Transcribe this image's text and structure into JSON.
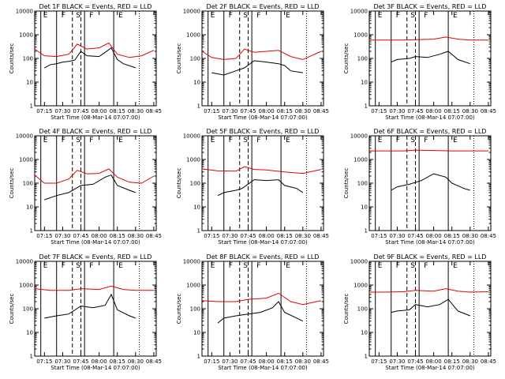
{
  "colors": {
    "events": "#000000",
    "lld": "#e00000",
    "frame": "#000000"
  },
  "common": {
    "xlabel": "Start Time (08-Mar-14 07:07:00)",
    "ylabel": "Counts/sec",
    "xticks": [
      "07:15",
      "07:30",
      "07:45",
      "08:00",
      "08:15",
      "08:30",
      "08:45"
    ],
    "yticks": [
      "1",
      "10",
      "100",
      "1000",
      "10000"
    ],
    "markers": [
      "E",
      "F",
      "S",
      "F",
      "E"
    ]
  },
  "chart_data": [
    {
      "type": "line",
      "title": "Det 1F BLACK = Events, RED = LLD",
      "xlabel": "Start Time (08-Mar-14 07:07:00)",
      "ylabel": "Counts/sec",
      "ylim": [
        1,
        10000
      ],
      "y_scale": "log",
      "series": [
        {
          "name": "Events",
          "color": "#000000",
          "x": [
            "07:15",
            "07:20",
            "07:25",
            "07:30",
            "07:35",
            "07:40",
            "07:45",
            "07:50",
            "08:00",
            "08:05",
            "08:10",
            "08:15",
            "08:20",
            "08:30"
          ],
          "values": [
            40,
            55,
            60,
            70,
            75,
            85,
            200,
            130,
            120,
            180,
            280,
            90,
            60,
            40
          ]
        },
        {
          "name": "LLD",
          "color": "#e00000",
          "x": [
            "07:07",
            "07:15",
            "07:25",
            "07:35",
            "07:42",
            "07:50",
            "08:00",
            "08:08",
            "08:15",
            "08:25",
            "08:35",
            "08:45"
          ],
          "values": [
            250,
            130,
            120,
            150,
            400,
            250,
            280,
            450,
            150,
            110,
            130,
            220
          ]
        }
      ]
    },
    {
      "type": "line",
      "title": "Det 2F BLACK = Events, RED = LLD",
      "xlabel": "Start Time (08-Mar-14 07:07:00)",
      "ylabel": "Counts/sec",
      "ylim": [
        1,
        10000
      ],
      "y_scale": "log",
      "series": [
        {
          "name": "Events",
          "color": "#000000",
          "x": [
            "07:15",
            "07:25",
            "07:35",
            "07:42",
            "07:50",
            "08:00",
            "08:10",
            "08:15",
            "08:20",
            "08:30"
          ],
          "values": [
            25,
            20,
            30,
            40,
            80,
            70,
            60,
            50,
            30,
            25
          ]
        },
        {
          "name": "LLD",
          "color": "#e00000",
          "x": [
            "07:07",
            "07:15",
            "07:25",
            "07:35",
            "07:42",
            "07:50",
            "08:00",
            "08:10",
            "08:20",
            "08:30",
            "08:45"
          ],
          "values": [
            200,
            110,
            90,
            100,
            250,
            180,
            200,
            220,
            120,
            90,
            200
          ]
        }
      ]
    },
    {
      "type": "line",
      "title": "Det 3F BLACK = Events, RED = LLD",
      "xlabel": "Start Time (08-Mar-14 07:07:00)",
      "ylabel": "Counts/sec",
      "ylim": [
        1,
        10000
      ],
      "y_scale": "log",
      "series": [
        {
          "name": "Events",
          "color": "#000000",
          "x": [
            "07:25",
            "07:30",
            "07:40",
            "07:45",
            "07:55",
            "08:05",
            "08:12",
            "08:20",
            "08:30"
          ],
          "values": [
            70,
            90,
            100,
            120,
            110,
            150,
            200,
            90,
            60
          ]
        },
        {
          "name": "LLD",
          "color": "#e00000",
          "x": [
            "07:07",
            "07:20",
            "07:35",
            "07:45",
            "08:00",
            "08:10",
            "08:20",
            "08:30",
            "08:45"
          ],
          "values": [
            600,
            600,
            600,
            620,
            650,
            800,
            650,
            600,
            600
          ]
        }
      ]
    },
    {
      "type": "line",
      "title": "Det 4F BLACK = Events, RED = LLD",
      "xlabel": "Start Time (08-Mar-14 07:07:00)",
      "ylabel": "Counts/sec",
      "ylim": [
        1,
        10000
      ],
      "y_scale": "log",
      "series": [
        {
          "name": "Events",
          "color": "#000000",
          "x": [
            "07:15",
            "07:25",
            "07:35",
            "07:45",
            "07:55",
            "08:05",
            "08:10",
            "08:15",
            "08:25",
            "08:30"
          ],
          "values": [
            20,
            30,
            40,
            80,
            90,
            180,
            220,
            80,
            50,
            40
          ]
        },
        {
          "name": "LLD",
          "color": "#e00000",
          "x": [
            "07:07",
            "07:15",
            "07:25",
            "07:35",
            "07:42",
            "07:50",
            "08:00",
            "08:08",
            "08:15",
            "08:25",
            "08:35",
            "08:45"
          ],
          "values": [
            220,
            100,
            100,
            150,
            350,
            250,
            260,
            400,
            180,
            110,
            100,
            200
          ]
        }
      ]
    },
    {
      "type": "line",
      "title": "Det 5F BLACK = Events, RED = LLD",
      "xlabel": "Start Time (08-Mar-14 07:07:00)",
      "ylabel": "Counts/sec",
      "ylim": [
        1,
        10000
      ],
      "y_scale": "log",
      "series": [
        {
          "name": "Events",
          "color": "#000000",
          "x": [
            "07:20",
            "07:25",
            "07:35",
            "07:40",
            "07:50",
            "08:00",
            "08:10",
            "08:15",
            "08:25",
            "08:30"
          ],
          "values": [
            30,
            40,
            50,
            60,
            140,
            130,
            140,
            80,
            60,
            40
          ]
        },
        {
          "name": "LLD",
          "color": "#e00000",
          "x": [
            "07:07",
            "07:20",
            "07:35",
            "07:42",
            "07:50",
            "08:00",
            "08:15",
            "08:30",
            "08:45"
          ],
          "values": [
            400,
            330,
            320,
            500,
            380,
            360,
            300,
            260,
            380
          ]
        }
      ]
    },
    {
      "type": "line",
      "title": "Det 6F BLACK = Events, RED = LLD",
      "xlabel": "Start Time (08-Mar-14 07:07:00)",
      "ylabel": "Counts/sec",
      "ylim": [
        1,
        10000
      ],
      "y_scale": "log",
      "series": [
        {
          "name": "Events",
          "color": "#000000",
          "x": [
            "07:25",
            "07:30",
            "07:40",
            "07:50",
            "08:00",
            "08:10",
            "08:15",
            "08:25",
            "08:30"
          ],
          "values": [
            50,
            70,
            90,
            130,
            250,
            180,
            100,
            60,
            50
          ]
        },
        {
          "name": "LLD",
          "color": "#e00000",
          "x": [
            "07:07",
            "07:20",
            "07:35",
            "07:45",
            "08:00",
            "08:15",
            "08:30",
            "08:45"
          ],
          "values": [
            2300,
            2300,
            2300,
            2500,
            2400,
            2300,
            2300,
            2300
          ]
        }
      ]
    },
    {
      "type": "line",
      "title": "Det 7F BLACK = Events, RED = LLD",
      "xlabel": "Start Time (08-Mar-14 07:07:00)",
      "ylabel": "Counts/sec",
      "ylim": [
        1,
        10000
      ],
      "y_scale": "log",
      "series": [
        {
          "name": "Events",
          "color": "#000000",
          "x": [
            "07:15",
            "07:25",
            "07:35",
            "07:45",
            "07:55",
            "08:05",
            "08:10",
            "08:15",
            "08:25",
            "08:30"
          ],
          "values": [
            40,
            50,
            60,
            130,
            110,
            140,
            400,
            90,
            50,
            40
          ]
        },
        {
          "name": "LLD",
          "color": "#e00000",
          "x": [
            "07:07",
            "07:20",
            "07:35",
            "07:45",
            "08:00",
            "08:10",
            "08:20",
            "08:30",
            "08:45"
          ],
          "values": [
            700,
            600,
            600,
            700,
            650,
            900,
            650,
            600,
            600
          ]
        }
      ]
    },
    {
      "type": "line",
      "title": "Det 8F BLACK = Events, RED = LLD",
      "xlabel": "Start Time (08-Mar-14 07:07:00)",
      "ylabel": "Counts/sec",
      "ylim": [
        1,
        10000
      ],
      "y_scale": "log",
      "series": [
        {
          "name": "Events",
          "color": "#000000",
          "x": [
            "07:20",
            "07:25",
            "07:35",
            "07:45",
            "07:55",
            "08:05",
            "08:10",
            "08:15",
            "08:25",
            "08:30"
          ],
          "values": [
            25,
            40,
            50,
            60,
            70,
            110,
            200,
            70,
            40,
            30
          ]
        },
        {
          "name": "LLD",
          "color": "#e00000",
          "x": [
            "07:07",
            "07:20",
            "07:35",
            "07:45",
            "08:00",
            "08:10",
            "08:20",
            "08:30",
            "08:45"
          ],
          "values": [
            220,
            200,
            200,
            250,
            280,
            450,
            200,
            150,
            220
          ]
        }
      ]
    },
    {
      "type": "line",
      "title": "Det 9F BLACK = Events, RED = LLD",
      "xlabel": "Start Time (08-Mar-14 07:07:00)",
      "ylabel": "Counts/sec",
      "ylim": [
        1,
        10000
      ],
      "y_scale": "log",
      "series": [
        {
          "name": "Events",
          "color": "#000000",
          "x": [
            "07:25",
            "07:30",
            "07:40",
            "07:45",
            "07:55",
            "08:05",
            "08:12",
            "08:20",
            "08:30"
          ],
          "values": [
            70,
            80,
            90,
            150,
            120,
            150,
            250,
            80,
            50
          ]
        },
        {
          "name": "LLD",
          "color": "#e00000",
          "x": [
            "07:07",
            "07:20",
            "07:35",
            "07:45",
            "08:00",
            "08:10",
            "08:20",
            "08:30",
            "08:45"
          ],
          "values": [
            500,
            500,
            520,
            600,
            550,
            700,
            550,
            500,
            520
          ]
        }
      ]
    }
  ]
}
